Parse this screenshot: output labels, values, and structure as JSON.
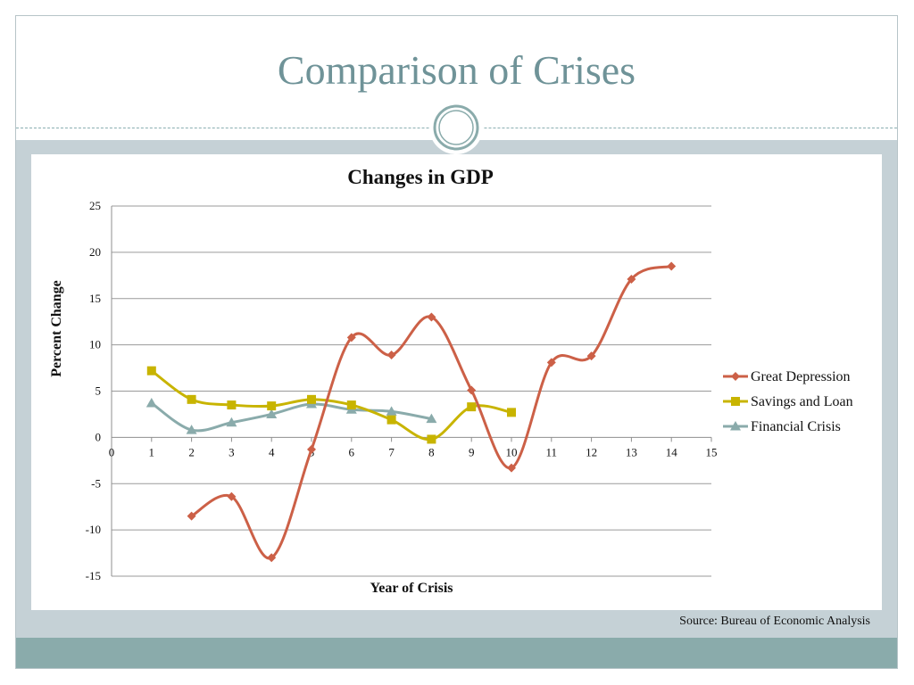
{
  "slide": {
    "title": "Comparison of Crises",
    "source": "Source:  Bureau of Economic Analysis"
  },
  "colors": {
    "title": "#6f9398",
    "band": "#c5d1d6",
    "footer": "#8aabab",
    "great_depression": "#cc6047",
    "savings_and_loan": "#c8b400",
    "financial_crisis": "#8aabab"
  },
  "chart_data": {
    "type": "line",
    "title": "Changes in GDP",
    "xlabel": "Year of Crisis",
    "ylabel": "Percent Change",
    "xlim": [
      0,
      15
    ],
    "ylim": [
      -15,
      25
    ],
    "x_ticks": [
      0,
      1,
      2,
      3,
      4,
      5,
      6,
      7,
      8,
      9,
      10,
      11,
      12,
      13,
      14,
      15
    ],
    "y_ticks": [
      25,
      20,
      15,
      10,
      5,
      0,
      -5,
      -10,
      -15
    ],
    "grid": "horizontal",
    "smooth": true,
    "legend_position": "right",
    "series": [
      {
        "name": "Great Depression",
        "marker": "diamond",
        "color": "#cc6047",
        "x": [
          2,
          3,
          4,
          5,
          6,
          7,
          8,
          9,
          10,
          11,
          12,
          13,
          14
        ],
        "values": [
          -8.5,
          -6.4,
          -13.0,
          -1.3,
          10.8,
          8.9,
          13.0,
          5.1,
          -3.3,
          8.1,
          8.8,
          17.1,
          18.5
        ]
      },
      {
        "name": "Savings and Loan",
        "marker": "square",
        "color": "#c8b400",
        "x": [
          1,
          2,
          3,
          4,
          5,
          6,
          7,
          8,
          9,
          10
        ],
        "values": [
          7.2,
          4.1,
          3.5,
          3.4,
          4.1,
          3.5,
          1.9,
          -0.2,
          3.3,
          2.7
        ]
      },
      {
        "name": "Financial Crisis",
        "marker": "triangle",
        "color": "#8aabab",
        "x": [
          1,
          2,
          3,
          4,
          5,
          6,
          7,
          8
        ],
        "values": [
          3.7,
          0.8,
          1.6,
          2.5,
          3.6,
          3.0,
          2.8,
          2.0
        ]
      }
    ]
  }
}
